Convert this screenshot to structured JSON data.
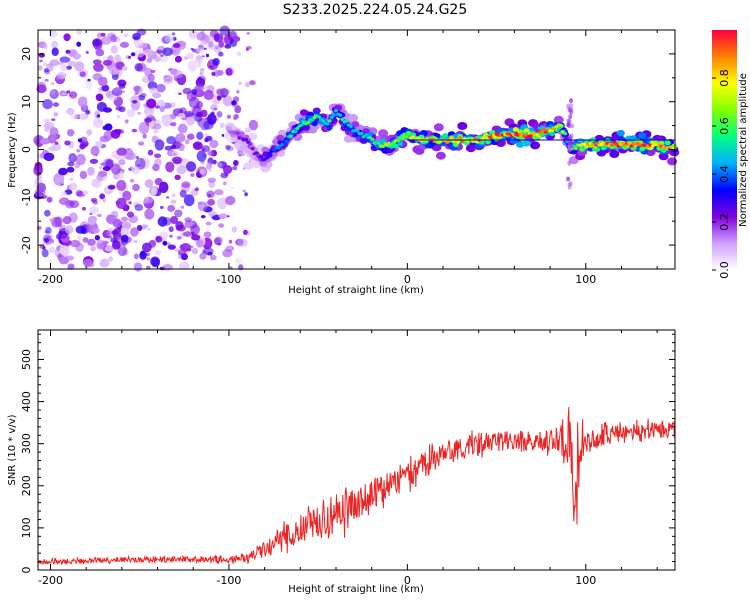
{
  "title": "S233.2025.224.05.24.G25",
  "chart_data": [
    {
      "type": "heatmap",
      "xlabel": "Height of straight line (km)",
      "ylabel": "Frequency (Hz)",
      "xlim": [
        -207,
        150
      ],
      "ylim": [
        -25,
        25
      ],
      "x_ticks": [
        -200,
        -100,
        0,
        100
      ],
      "y_ticks": [
        -20,
        -10,
        0,
        10,
        20
      ],
      "colorbar": {
        "label": "Normalized spectral amplitude",
        "range": [
          0,
          1
        ],
        "ticks": [
          0.0,
          0.2,
          0.4,
          0.6,
          0.8
        ],
        "colors": [
          "#ffffff",
          "#cfa0ff",
          "#8000e0",
          "#0000ff",
          "#00b0ff",
          "#00ff80",
          "#80ff00",
          "#ffff00",
          "#ff8000",
          "#ff0040"
        ]
      },
      "noise_region": {
        "x": [
          -207,
          -85
        ],
        "y": [
          -25,
          25
        ],
        "amplitude": [
          0.05,
          0.3
        ]
      },
      "ridge": {
        "x": [
          -100,
          -95,
          -90,
          -85,
          -80,
          -75,
          -70,
          -65,
          -60,
          -55,
          -50,
          -45,
          -40,
          -35,
          -30,
          -25,
          -20,
          -15,
          -10,
          -5,
          0,
          5,
          10,
          20,
          30,
          40,
          50,
          60,
          70,
          80,
          85,
          88,
          90,
          92,
          95,
          100,
          110,
          120,
          130,
          140,
          150
        ],
        "freq": [
          4,
          3,
          2,
          -1,
          -2,
          0,
          1,
          3,
          5,
          6,
          7,
          5,
          8,
          6,
          4,
          3,
          2,
          1,
          1,
          2,
          3,
          2,
          2,
          2,
          2,
          2,
          3,
          3,
          3,
          4,
          5,
          4,
          1,
          0,
          1,
          1,
          1,
          1,
          1,
          1,
          0
        ],
        "amplitude": [
          0.15,
          0.2,
          0.25,
          0.2,
          0.3,
          0.35,
          0.4,
          0.5,
          0.55,
          0.6,
          0.55,
          0.5,
          0.55,
          0.5,
          0.45,
          0.5,
          0.55,
          0.6,
          0.65,
          0.7,
          0.7,
          0.75,
          0.8,
          0.8,
          0.85,
          0.85,
          0.9,
          0.92,
          0.95,
          0.85,
          0.75,
          0.6,
          0.5,
          0.55,
          0.7,
          0.85,
          0.9,
          0.95,
          0.95,
          0.9,
          0.85
        ]
      }
    },
    {
      "type": "line",
      "xlabel": "Height of straight line (km)",
      "ylabel": "SNR (10 * v/v)",
      "xlim": [
        -207,
        150
      ],
      "ylim": [
        0,
        570
      ],
      "x_ticks": [
        -200,
        -100,
        0,
        100
      ],
      "y_ticks": [
        0,
        100,
        200,
        300,
        400,
        500
      ],
      "color": "#ee2222",
      "series": [
        {
          "name": "SNR",
          "x": [
            -207,
            -180,
            -150,
            -120,
            -100,
            -90,
            -80,
            -70,
            -60,
            -50,
            -40,
            -30,
            -20,
            -10,
            0,
            10,
            20,
            30,
            40,
            50,
            60,
            70,
            80,
            85,
            90,
            93,
            95,
            97,
            100,
            110,
            120,
            130,
            140,
            150
          ],
          "mean": [
            20,
            22,
            25,
            25,
            25,
            30,
            50,
            75,
            95,
            115,
            135,
            150,
            175,
            200,
            225,
            255,
            275,
            290,
            300,
            305,
            305,
            305,
            300,
            300,
            310,
            250,
            200,
            300,
            310,
            320,
            325,
            330,
            335,
            340
          ],
          "spread": [
            10,
            10,
            10,
            12,
            15,
            20,
            30,
            45,
            60,
            70,
            75,
            70,
            65,
            60,
            55,
            50,
            45,
            45,
            45,
            40,
            40,
            40,
            40,
            50,
            150,
            260,
            280,
            120,
            50,
            45,
            40,
            35,
            35,
            35
          ]
        }
      ]
    }
  ]
}
